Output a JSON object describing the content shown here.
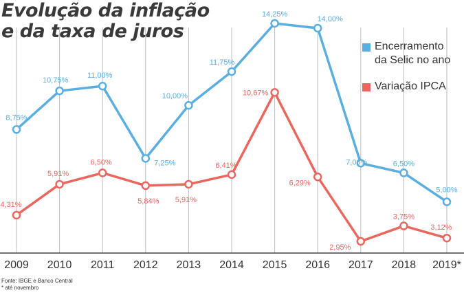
{
  "title": {
    "line1": "Evolução da inflação",
    "line2": "e da taxa de juros"
  },
  "legend": [
    {
      "label_line1": "Encerramento",
      "label_line2": "da Selic no ano",
      "color": "#5aaee0"
    },
    {
      "label_line1": "Variação IPCA",
      "label_line2": "",
      "color": "#e9675f"
    }
  ],
  "notes": {
    "source": "Fonte: IBGE e Banco Central",
    "footnote": "* até novembro"
  },
  "chart_data": {
    "type": "line",
    "title": "Evolução da inflação e da taxa de juros",
    "categories": [
      "2009",
      "2010",
      "2011",
      "2012",
      "2013",
      "2014",
      "2015",
      "2016",
      "2017",
      "2018",
      "2019*"
    ],
    "series": [
      {
        "name": "Encerramento da Selic no ano",
        "color": "#5aaee0",
        "values": [
          8.75,
          10.75,
          11.0,
          7.25,
          10.0,
          11.75,
          14.25,
          14.0,
          7.0,
          6.5,
          5.0
        ],
        "labels": [
          "8,75%",
          "10,75%",
          "11,00%",
          "7,25%",
          "10,00%",
          "11,75%",
          "14,25%",
          "14,00%",
          "7,00%",
          "6,50%",
          "5,00%"
        ]
      },
      {
        "name": "Variação IPCA",
        "color": "#e9675f",
        "values": [
          4.31,
          5.91,
          6.5,
          5.84,
          5.91,
          6.41,
          10.67,
          6.29,
          2.95,
          3.75,
          3.12
        ],
        "labels": [
          "4,31%",
          "5,91%",
          "6,50%",
          "5,84%",
          "5,91%",
          "6,41%",
          "10,67%",
          "6,29%",
          "2,95%",
          "3,75%",
          "3,12%"
        ]
      }
    ],
    "xlabel": "",
    "ylabel": "",
    "ylim": [
      2,
      15
    ],
    "grid": "vertical"
  }
}
